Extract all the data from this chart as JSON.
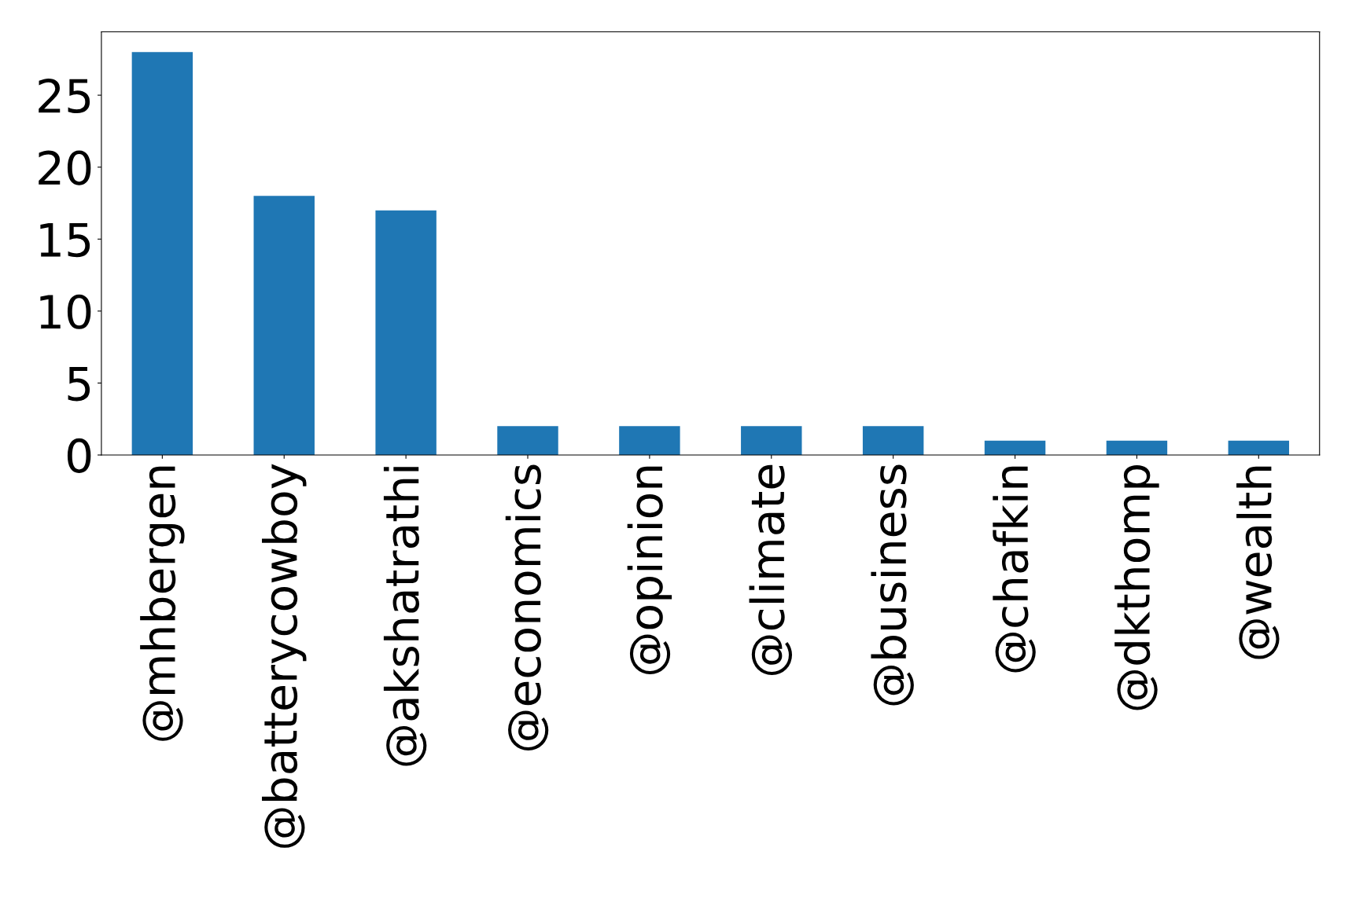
{
  "chart_data": {
    "type": "bar",
    "categories": [
      "@mhbergen",
      "@batterycowboy",
      "@akshatrathi",
      "@economics",
      "@opinion",
      "@climate",
      "@business",
      "@chafkin",
      "@dkthomp",
      "@wealth"
    ],
    "values": [
      28,
      18,
      17,
      2,
      2,
      2,
      2,
      1,
      1,
      1
    ],
    "color": "#1f77b4",
    "ylim": [
      0,
      29.4
    ],
    "yticks": [
      0,
      5,
      10,
      15,
      20,
      25
    ],
    "grid": false
  }
}
